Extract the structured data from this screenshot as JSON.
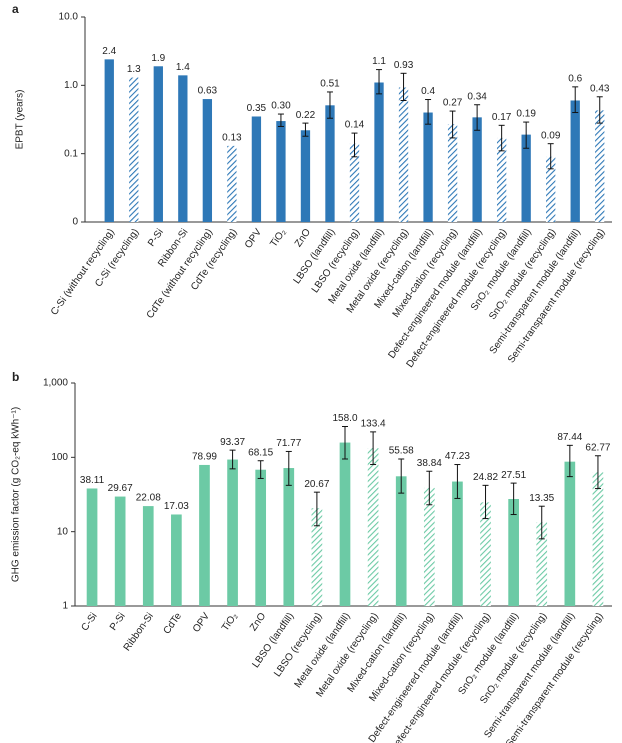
{
  "chart_data": [
    {
      "type": "bar",
      "panel": "a",
      "ylabel": "EPBT (years)",
      "log": true,
      "color": "#2e78b7",
      "categories": [
        "C-Si (without recycling)",
        "C-Si (recycling)",
        "P-Si",
        "Ribbon-Si",
        "CdTe (without recycling)",
        "CdTe (recycling)",
        "OPV",
        "TiO₂",
        "ZnO",
        "LBSO (landfill)",
        "LBSO (recycling)",
        "Metal oxide (landfill)",
        "Metal oxide (recycling)",
        "Mixed-cation (landfill)",
        "Mixed-cation (recycling)",
        "Defect-engineered module (landfill)",
        "Defect-engineered module (recycling)",
        "SnO₂ module (landfill)",
        "SnO₂ module (recycling)",
        "Semi-transparent module (landfill)",
        "Semi-transparent module (recycling)"
      ],
      "values": [
        2.4,
        1.3,
        1.9,
        1.4,
        0.63,
        0.13,
        0.35,
        0.3,
        0.22,
        0.51,
        0.14,
        1.1,
        0.93,
        0.4,
        0.27,
        0.34,
        0.17,
        0.19,
        0.09,
        0.6,
        0.43
      ],
      "value_labels": [
        "2.4",
        "1.3",
        "1.9",
        "1.4",
        "0.63",
        "0.13",
        "0.35",
        "0.30",
        "0.22",
        "0.51",
        "0.14",
        "1.1",
        "0.93",
        "0.4",
        "0.27",
        "0.34",
        "0.17",
        "0.19",
        "0.09",
        "0.6",
        "0.43"
      ],
      "patterns": [
        "solid",
        "hatched",
        "solid",
        "solid",
        "solid",
        "hatched",
        "solid",
        "solid",
        "solid",
        "solid",
        "hatched",
        "solid",
        "hatched",
        "solid",
        "hatched",
        "solid",
        "hatched",
        "solid",
        "hatched",
        "solid",
        "hatched"
      ],
      "error_low": [
        null,
        null,
        null,
        null,
        null,
        null,
        null,
        0.25,
        0.18,
        0.33,
        0.09,
        0.75,
        0.6,
        0.27,
        0.17,
        0.22,
        0.11,
        0.12,
        0.06,
        0.4,
        0.28
      ],
      "error_high": [
        null,
        null,
        null,
        null,
        null,
        null,
        null,
        0.38,
        0.28,
        0.8,
        0.2,
        1.7,
        1.5,
        0.62,
        0.42,
        0.52,
        0.26,
        0.29,
        0.14,
        0.95,
        0.68
      ],
      "ylim": [
        0.01,
        10
      ],
      "yticks": [
        {
          "value": 0.01,
          "label": "0"
        },
        0.1,
        {
          "value": 1,
          "label": "1.0"
        },
        {
          "value": 10,
          "label": "10.0"
        }
      ]
    },
    {
      "type": "bar",
      "panel": "b",
      "ylabel": "GHG emission factor (g CO₂-eq kWh⁻¹)",
      "log": true,
      "color": "#6ccaa5",
      "categories": [
        "C-Si",
        "P-Si",
        "Ribbon-Si",
        "CdTe",
        "OPV",
        "TiO₂",
        "ZnO",
        "LBSO (landfill)",
        "LBSO (recycling)",
        "Metal oxide (landfill)",
        "Metal oxide (recycling)",
        "Mixed-cation (landfill)",
        "Mixed-cation (recycling)",
        "Defect-engineered module (landfill)",
        "Defect-engineered module (recycling)",
        "SnO₂ module (landfill)",
        "SnO₂ module (recycling)",
        "Semi-transparent module (landfill)",
        "Semi-transparent module (recycling)"
      ],
      "values": [
        38.11,
        29.67,
        22.08,
        17.03,
        78.99,
        93.37,
        68.15,
        71.77,
        20.67,
        158.0,
        133.4,
        55.58,
        38.84,
        47.23,
        24.82,
        27.51,
        13.35,
        87.44,
        62.77
      ],
      "value_labels": [
        "38.11",
        "29.67",
        "22.08",
        "17.03",
        "78.99",
        "93.37",
        "68.15",
        "71.77",
        "20.67",
        "158.0",
        "133.4",
        "55.58",
        "38.84",
        "47.23",
        "24.82",
        "27.51",
        "13.35",
        "87.44",
        "62.77"
      ],
      "patterns": [
        "solid",
        "solid",
        "solid",
        "solid",
        "solid",
        "solid",
        "solid",
        "solid",
        "hatched",
        "solid",
        "hatched",
        "solid",
        "hatched",
        "solid",
        "hatched",
        "solid",
        "hatched",
        "solid",
        "hatched"
      ],
      "error_low": [
        null,
        null,
        null,
        null,
        null,
        70,
        52,
        42,
        12,
        95,
        80,
        33,
        23,
        28,
        15,
        17,
        8,
        55,
        38
      ],
      "error_high": [
        null,
        null,
        null,
        null,
        null,
        125,
        90,
        120,
        34,
        260,
        220,
        95,
        65,
        80,
        42,
        45,
        22,
        145,
        105
      ],
      "ylim": [
        1,
        1000
      ],
      "yticks": [
        1,
        10,
        100,
        {
          "value": 1000,
          "label": "1,000"
        }
      ]
    }
  ]
}
